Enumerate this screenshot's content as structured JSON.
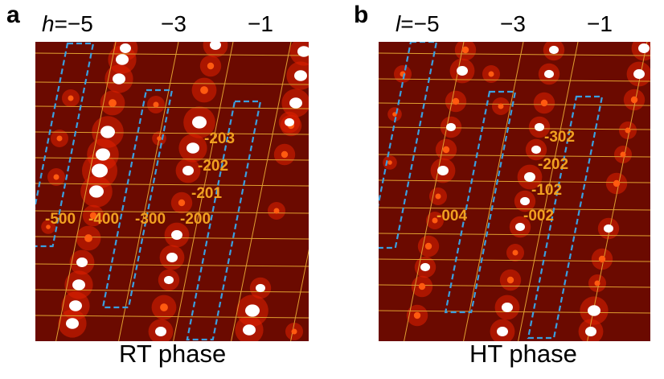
{
  "panels": [
    {
      "letter": "a",
      "axis_symbol": "h",
      "ticks": [
        "=−5",
        "−3",
        "−1"
      ],
      "caption": "RT phase",
      "labels": [
        "-203",
        "-202",
        "-201",
        "-500",
        "-400",
        "-300",
        "-200"
      ]
    },
    {
      "letter": "b",
      "axis_symbol": "l",
      "ticks": [
        "=−5",
        "−3",
        "−1"
      ],
      "caption": "HT phase",
      "labels": [
        "-302",
        "-202",
        "-102",
        "-004",
        "-002"
      ]
    }
  ],
  "colors": {
    "background": "#6b0a00",
    "grid": "#e0a030",
    "label": "#f0a020",
    "box": "#3aa0e0",
    "spot": "#ffffff",
    "spot_glow": "#ff3000"
  }
}
